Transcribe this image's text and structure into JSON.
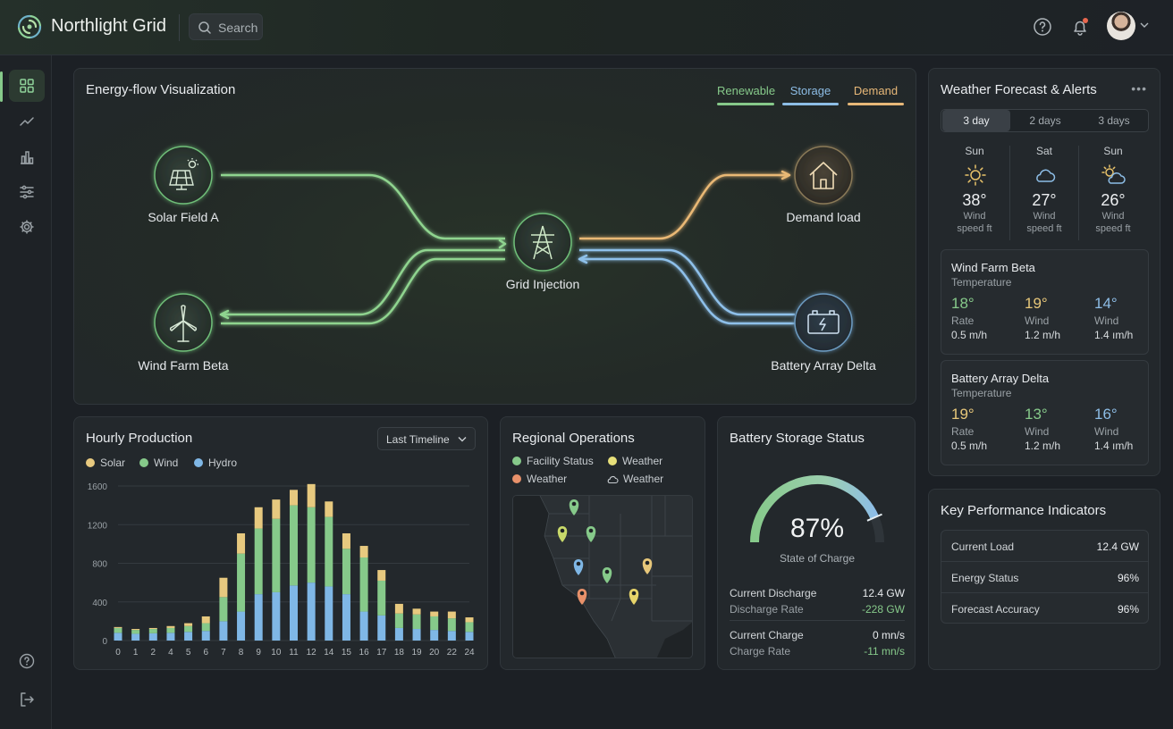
{
  "app": {
    "title": "Northlight Grid"
  },
  "search": {
    "placeholder": "Search"
  },
  "flow": {
    "title": "Energy-flow Visualization",
    "legend": [
      {
        "label": "Renewable",
        "color": "#86c98a"
      },
      {
        "label": "Storage",
        "color": "#8dbde6"
      },
      {
        "label": "Demand",
        "color": "#e7b878"
      }
    ],
    "nodes": {
      "solar": "Solar Field A",
      "wind": "Wind Farm Beta",
      "grid": "Grid Injection",
      "demand": "Demand load",
      "battery": "Battery Array Delta"
    }
  },
  "weather": {
    "title": "Weather Forecast & Alerts",
    "tabs": [
      "3 day",
      "2 days",
      "3 days"
    ],
    "days": [
      {
        "day": "Sun",
        "icon": "sun-icon",
        "temp": "38°",
        "line1": "Wind",
        "line2": "speed ft"
      },
      {
        "day": "Sat",
        "icon": "cloud-icon",
        "temp": "27°",
        "line1": "Wind",
        "line2": "speed ft"
      },
      {
        "day": "Sun",
        "icon": "partly-cloudy-icon",
        "temp": "26°",
        "line1": "Wind",
        "line2": "speed ft"
      }
    ],
    "cards": [
      {
        "title": "Wind Farm Beta",
        "subtitle": "Temperature",
        "cols": [
          {
            "value": "18°",
            "label": "Rate",
            "sub": "0.5 m/h",
            "color": "#86c98a"
          },
          {
            "value": "19°",
            "label": "Wind",
            "sub": "1.2 m/h",
            "color": "#e7c77a"
          },
          {
            "value": "14°",
            "label": "Wind",
            "sub": "1.4 ım/h",
            "color": "#8dbde6"
          }
        ]
      },
      {
        "title": "Battery Array Delta",
        "subtitle": "Temperature",
        "cols": [
          {
            "value": "19°",
            "label": "Rate",
            "sub": "0.5 m/h",
            "color": "#e7c77a"
          },
          {
            "value": "13°",
            "label": "Wind",
            "sub": "1.2 m/h",
            "color": "#86c98a"
          },
          {
            "value": "16°",
            "label": "Wind",
            "sub": "1.4 ım/h",
            "color": "#8dbde6"
          }
        ]
      }
    ]
  },
  "kpi": {
    "title": "Key Performance Indicators",
    "rows": [
      {
        "label": "Current Load",
        "value": "12.4 GW"
      },
      {
        "label": "Energy Status",
        "value": "96%"
      },
      {
        "label": "Forecast Accuracy",
        "value": "96%"
      }
    ]
  },
  "hourly": {
    "title": "Hourly Production",
    "dropdown": "Last Timeline",
    "legend": [
      {
        "label": "Solar",
        "color": "#e7c97f"
      },
      {
        "label": "Wind",
        "color": "#86c98a"
      },
      {
        "label": "Hydro",
        "color": "#7fb7e6"
      }
    ]
  },
  "chart_data": {
    "type": "bar",
    "stacked": true,
    "categories": [
      "0",
      "1",
      "2",
      "4",
      "5",
      "6",
      "7",
      "8",
      "9",
      "10",
      "11",
      "12",
      "14",
      "15",
      "16",
      "17",
      "18",
      "19",
      "20",
      "22",
      "24"
    ],
    "x_tick_labels": [
      "0",
      "1",
      "2",
      "4",
      "5",
      "6",
      "7",
      "8",
      "9",
      "10",
      "11",
      "12",
      "14",
      "15",
      "16",
      "17",
      "18",
      "19",
      "20",
      "22",
      "24"
    ],
    "ylim": [
      0,
      1600
    ],
    "yticks": [
      0,
      400,
      800,
      1200,
      1600
    ],
    "grid": true,
    "legend_position": "top-left",
    "series": [
      {
        "name": "Hydro",
        "color": "#7fb7e6",
        "values": [
          80,
          70,
          75,
          80,
          90,
          100,
          200,
          300,
          480,
          500,
          570,
          600,
          560,
          480,
          300,
          260,
          130,
          120,
          110,
          100,
          90
        ]
      },
      {
        "name": "Wind",
        "color": "#86c98a",
        "values": [
          50,
          40,
          45,
          50,
          60,
          80,
          250,
          600,
          680,
          760,
          830,
          780,
          720,
          470,
          560,
          360,
          150,
          150,
          140,
          130,
          100
        ]
      },
      {
        "name": "Solar",
        "color": "#e7c97f",
        "values": [
          10,
          10,
          10,
          20,
          30,
          70,
          200,
          210,
          220,
          200,
          160,
          240,
          160,
          160,
          120,
          110,
          100,
          60,
          50,
          70,
          50
        ]
      }
    ]
  },
  "regional": {
    "title": "Regional Operations",
    "legend": [
      {
        "label": "Facility Status",
        "color": "#86c98a"
      },
      {
        "label": "Weather",
        "color": "#e7e07a"
      },
      {
        "label": "Weather",
        "color": "#e8916a"
      },
      {
        "label": "Weather",
        "color": "cloud"
      }
    ]
  },
  "battery": {
    "title": "Battery Storage Status",
    "percent_value": 87,
    "percent_text": "87%",
    "caption": "State of Charge",
    "rows": [
      {
        "label": "Current Discharge",
        "value": "12.4 GW",
        "sublabel": "Discharge Rate",
        "subvalue": "-228 GW"
      },
      {
        "label": "Current Charge",
        "value": "0 mn/s",
        "sublabel": "Charge Rate",
        "subvalue": "-11 mn/s"
      }
    ]
  }
}
